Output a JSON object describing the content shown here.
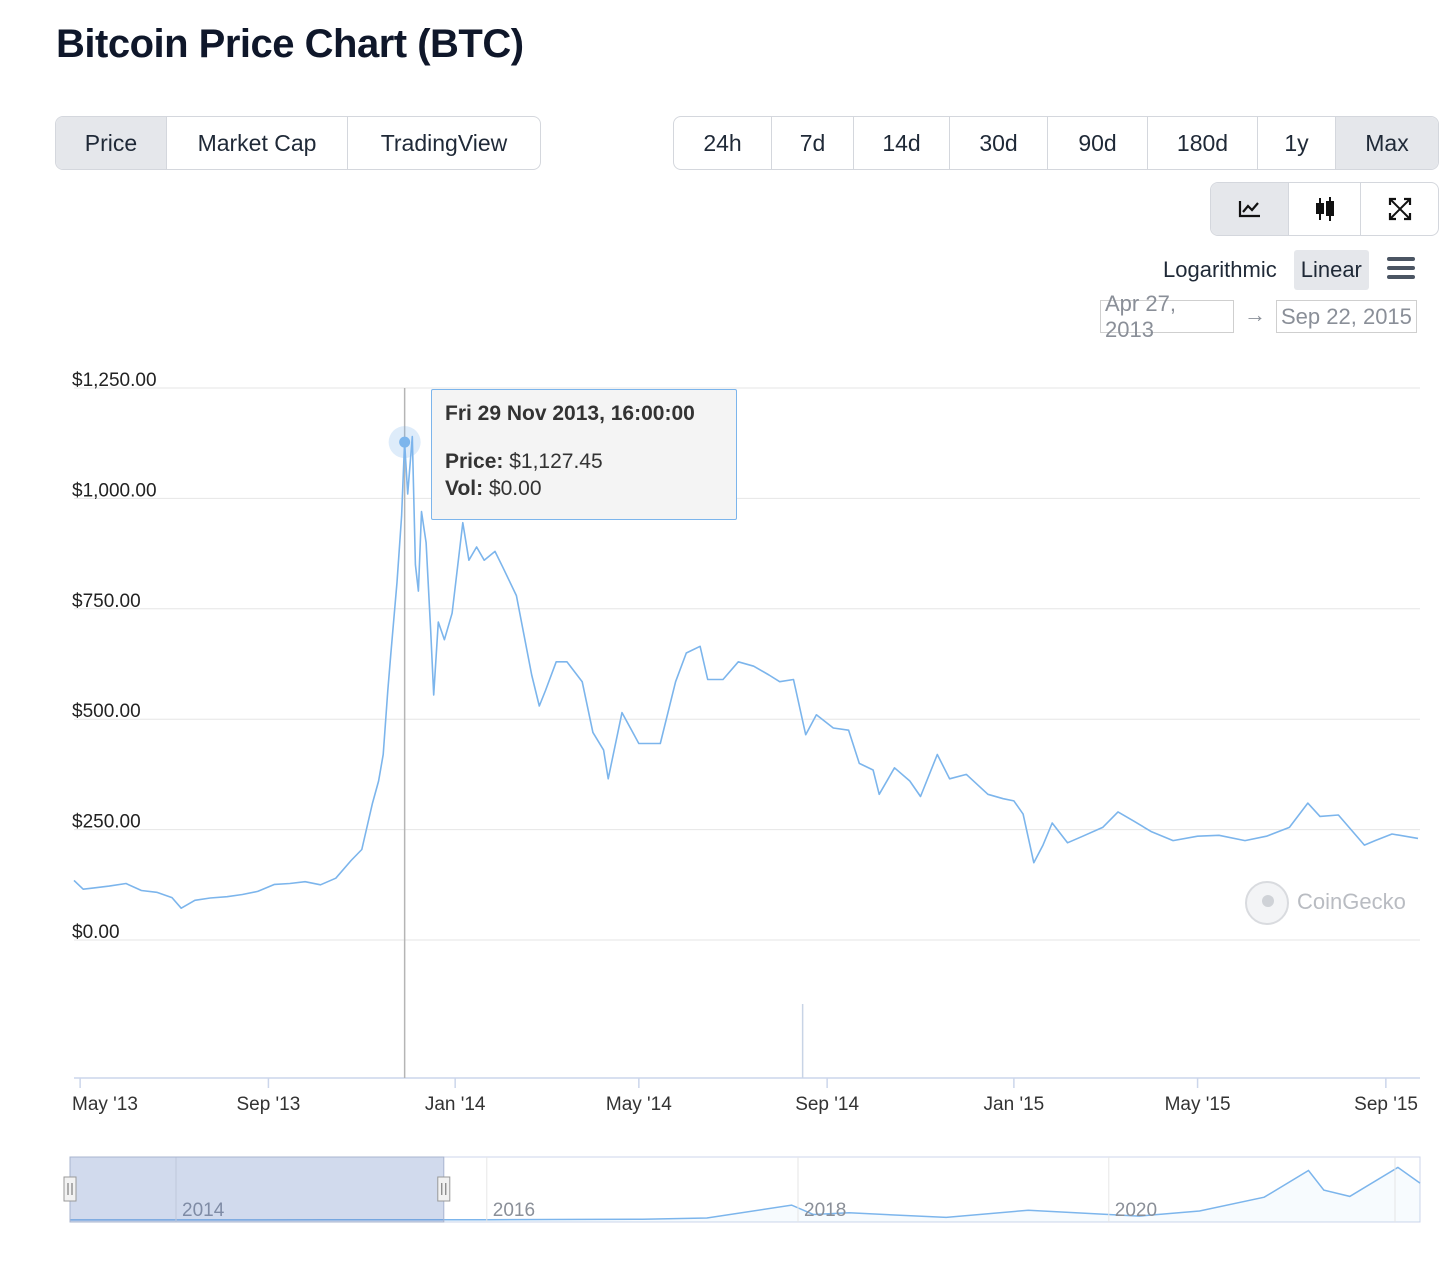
{
  "title": "Bitcoin Price Chart (BTC)",
  "tabs": [
    {
      "label": "Price",
      "active": true
    },
    {
      "label": "Market Cap",
      "active": false
    },
    {
      "label": "TradingView",
      "active": false
    }
  ],
  "ranges": [
    {
      "label": "24h",
      "active": false
    },
    {
      "label": "7d",
      "active": false
    },
    {
      "label": "14d",
      "active": false
    },
    {
      "label": "30d",
      "active": false
    },
    {
      "label": "90d",
      "active": false
    },
    {
      "label": "180d",
      "active": false
    },
    {
      "label": "1y",
      "active": false
    },
    {
      "label": "Max",
      "active": true
    }
  ],
  "tools": [
    {
      "icon": "line-chart-icon",
      "active": true
    },
    {
      "icon": "candlestick-icon",
      "active": false
    },
    {
      "icon": "fullscreen-icon",
      "active": false
    }
  ],
  "scale": {
    "log_label": "Logarithmic",
    "linear_label": "Linear",
    "selected": "Linear"
  },
  "date_range": {
    "from": "Apr 27, 2013",
    "arrow": "→",
    "to": "Sep 22, 2015"
  },
  "tooltip": {
    "date": "Fri 29 Nov 2013, 16:00:00",
    "price_label": "Price:",
    "price_value": "$1,127.45",
    "vol_label": "Vol:",
    "vol_value": "$0.00"
  },
  "watermark": "CoinGecko",
  "colors": {
    "line": "#7cb5ec",
    "grid": "#e6e6e6",
    "navigator_mask": "rgba(102,133,194,0.3)"
  },
  "chart_data": {
    "type": "line",
    "series": [
      {
        "points": [
          [
            "2013-04-27",
            135
          ],
          [
            "2013-05-03",
            115
          ],
          [
            "2013-05-10",
            118
          ],
          [
            "2013-05-20",
            122
          ],
          [
            "2013-05-31",
            128
          ],
          [
            "2013-06-10",
            112
          ],
          [
            "2013-06-20",
            108
          ],
          [
            "2013-06-30",
            96
          ],
          [
            "2013-07-06",
            72
          ],
          [
            "2013-07-15",
            90
          ],
          [
            "2013-07-25",
            95
          ],
          [
            "2013-08-05",
            98
          ],
          [
            "2013-08-15",
            103
          ],
          [
            "2013-08-25",
            110
          ],
          [
            "2013-09-05",
            126
          ],
          [
            "2013-09-15",
            128
          ],
          [
            "2013-09-25",
            132
          ],
          [
            "2013-10-05",
            125
          ],
          [
            "2013-10-15",
            140
          ],
          [
            "2013-10-25",
            180
          ],
          [
            "2013-11-01",
            205
          ],
          [
            "2013-11-08",
            310
          ],
          [
            "2013-11-12",
            360
          ],
          [
            "2013-11-15",
            420
          ],
          [
            "2013-11-18",
            565
          ],
          [
            "2013-11-20",
            650
          ],
          [
            "2013-11-24",
            810
          ],
          [
            "2013-11-27",
            960
          ],
          [
            "2013-11-29",
            1127.45
          ],
          [
            "2013-12-01",
            1010
          ],
          [
            "2013-12-04",
            1140
          ],
          [
            "2013-12-06",
            850
          ],
          [
            "2013-12-08",
            790
          ],
          [
            "2013-12-10",
            970
          ],
          [
            "2013-12-13",
            900
          ],
          [
            "2013-12-16",
            700
          ],
          [
            "2013-12-18",
            555
          ],
          [
            "2013-12-21",
            720
          ],
          [
            "2013-12-25",
            680
          ],
          [
            "2013-12-30",
            740
          ],
          [
            "2014-01-06",
            945
          ],
          [
            "2014-01-10",
            860
          ],
          [
            "2014-01-15",
            890
          ],
          [
            "2014-01-20",
            860
          ],
          [
            "2014-01-27",
            880
          ],
          [
            "2014-02-01",
            845
          ],
          [
            "2014-02-10",
            780
          ],
          [
            "2014-02-20",
            600
          ],
          [
            "2014-02-25",
            530
          ],
          [
            "2014-03-01",
            565
          ],
          [
            "2014-03-08",
            630
          ],
          [
            "2014-03-15",
            630
          ],
          [
            "2014-03-25",
            585
          ],
          [
            "2014-04-01",
            470
          ],
          [
            "2014-04-08",
            430
          ],
          [
            "2014-04-11",
            365
          ],
          [
            "2014-04-20",
            515
          ],
          [
            "2014-05-01",
            445
          ],
          [
            "2014-05-15",
            445
          ],
          [
            "2014-05-25",
            585
          ],
          [
            "2014-06-01",
            650
          ],
          [
            "2014-06-10",
            665
          ],
          [
            "2014-06-15",
            590
          ],
          [
            "2014-06-25",
            590
          ],
          [
            "2014-07-05",
            630
          ],
          [
            "2014-07-15",
            620
          ],
          [
            "2014-07-25",
            600
          ],
          [
            "2014-08-01",
            585
          ],
          [
            "2014-08-10",
            590
          ],
          [
            "2014-08-18",
            465
          ],
          [
            "2014-08-25",
            510
          ],
          [
            "2014-09-05",
            480
          ],
          [
            "2014-09-15",
            475
          ],
          [
            "2014-09-22",
            400
          ],
          [
            "2014-10-01",
            385
          ],
          [
            "2014-10-05",
            330
          ],
          [
            "2014-10-15",
            390
          ],
          [
            "2014-10-25",
            360
          ],
          [
            "2014-11-01",
            325
          ],
          [
            "2014-11-12",
            420
          ],
          [
            "2014-11-20",
            365
          ],
          [
            "2014-12-01",
            375
          ],
          [
            "2014-12-15",
            330
          ],
          [
            "2014-12-25",
            320
          ],
          [
            "2015-01-01",
            315
          ],
          [
            "2015-01-07",
            285
          ],
          [
            "2015-01-14",
            175
          ],
          [
            "2015-01-20",
            215
          ],
          [
            "2015-01-26",
            265
          ],
          [
            "2015-02-05",
            220
          ],
          [
            "2015-02-15",
            235
          ],
          [
            "2015-02-28",
            255
          ],
          [
            "2015-03-10",
            290
          ],
          [
            "2015-03-20",
            270
          ],
          [
            "2015-04-01",
            245
          ],
          [
            "2015-04-15",
            225
          ],
          [
            "2015-05-01",
            235
          ],
          [
            "2015-05-15",
            237
          ],
          [
            "2015-06-01",
            225
          ],
          [
            "2015-06-15",
            235
          ],
          [
            "2015-06-30",
            255
          ],
          [
            "2015-07-12",
            310
          ],
          [
            "2015-07-20",
            280
          ],
          [
            "2015-08-01",
            283
          ],
          [
            "2015-08-18",
            215
          ],
          [
            "2015-08-25",
            225
          ],
          [
            "2015-09-05",
            240
          ],
          [
            "2015-09-22",
            230
          ]
        ]
      }
    ],
    "volume_note": "only a thin spike line near Aug 2014 is visible",
    "y_ticks": [
      "$1,250.00",
      "$1,000.00",
      "$750.00",
      "$500.00",
      "$250.00",
      "$0.00"
    ],
    "x_ticks": [
      "May '13",
      "Sep '13",
      "Jan '14",
      "May '14",
      "Sep '14",
      "Jan '15",
      "May '15",
      "Sep '15"
    ],
    "ylim": [
      0,
      1250
    ],
    "xlim": [
      "2013-04-27",
      "2015-09-22"
    ],
    "grid": true,
    "navigator": {
      "labels": [
        "2014",
        "2016",
        "2018",
        "2020"
      ],
      "window": [
        "2013-04-27",
        "2015-09-22"
      ]
    }
  }
}
